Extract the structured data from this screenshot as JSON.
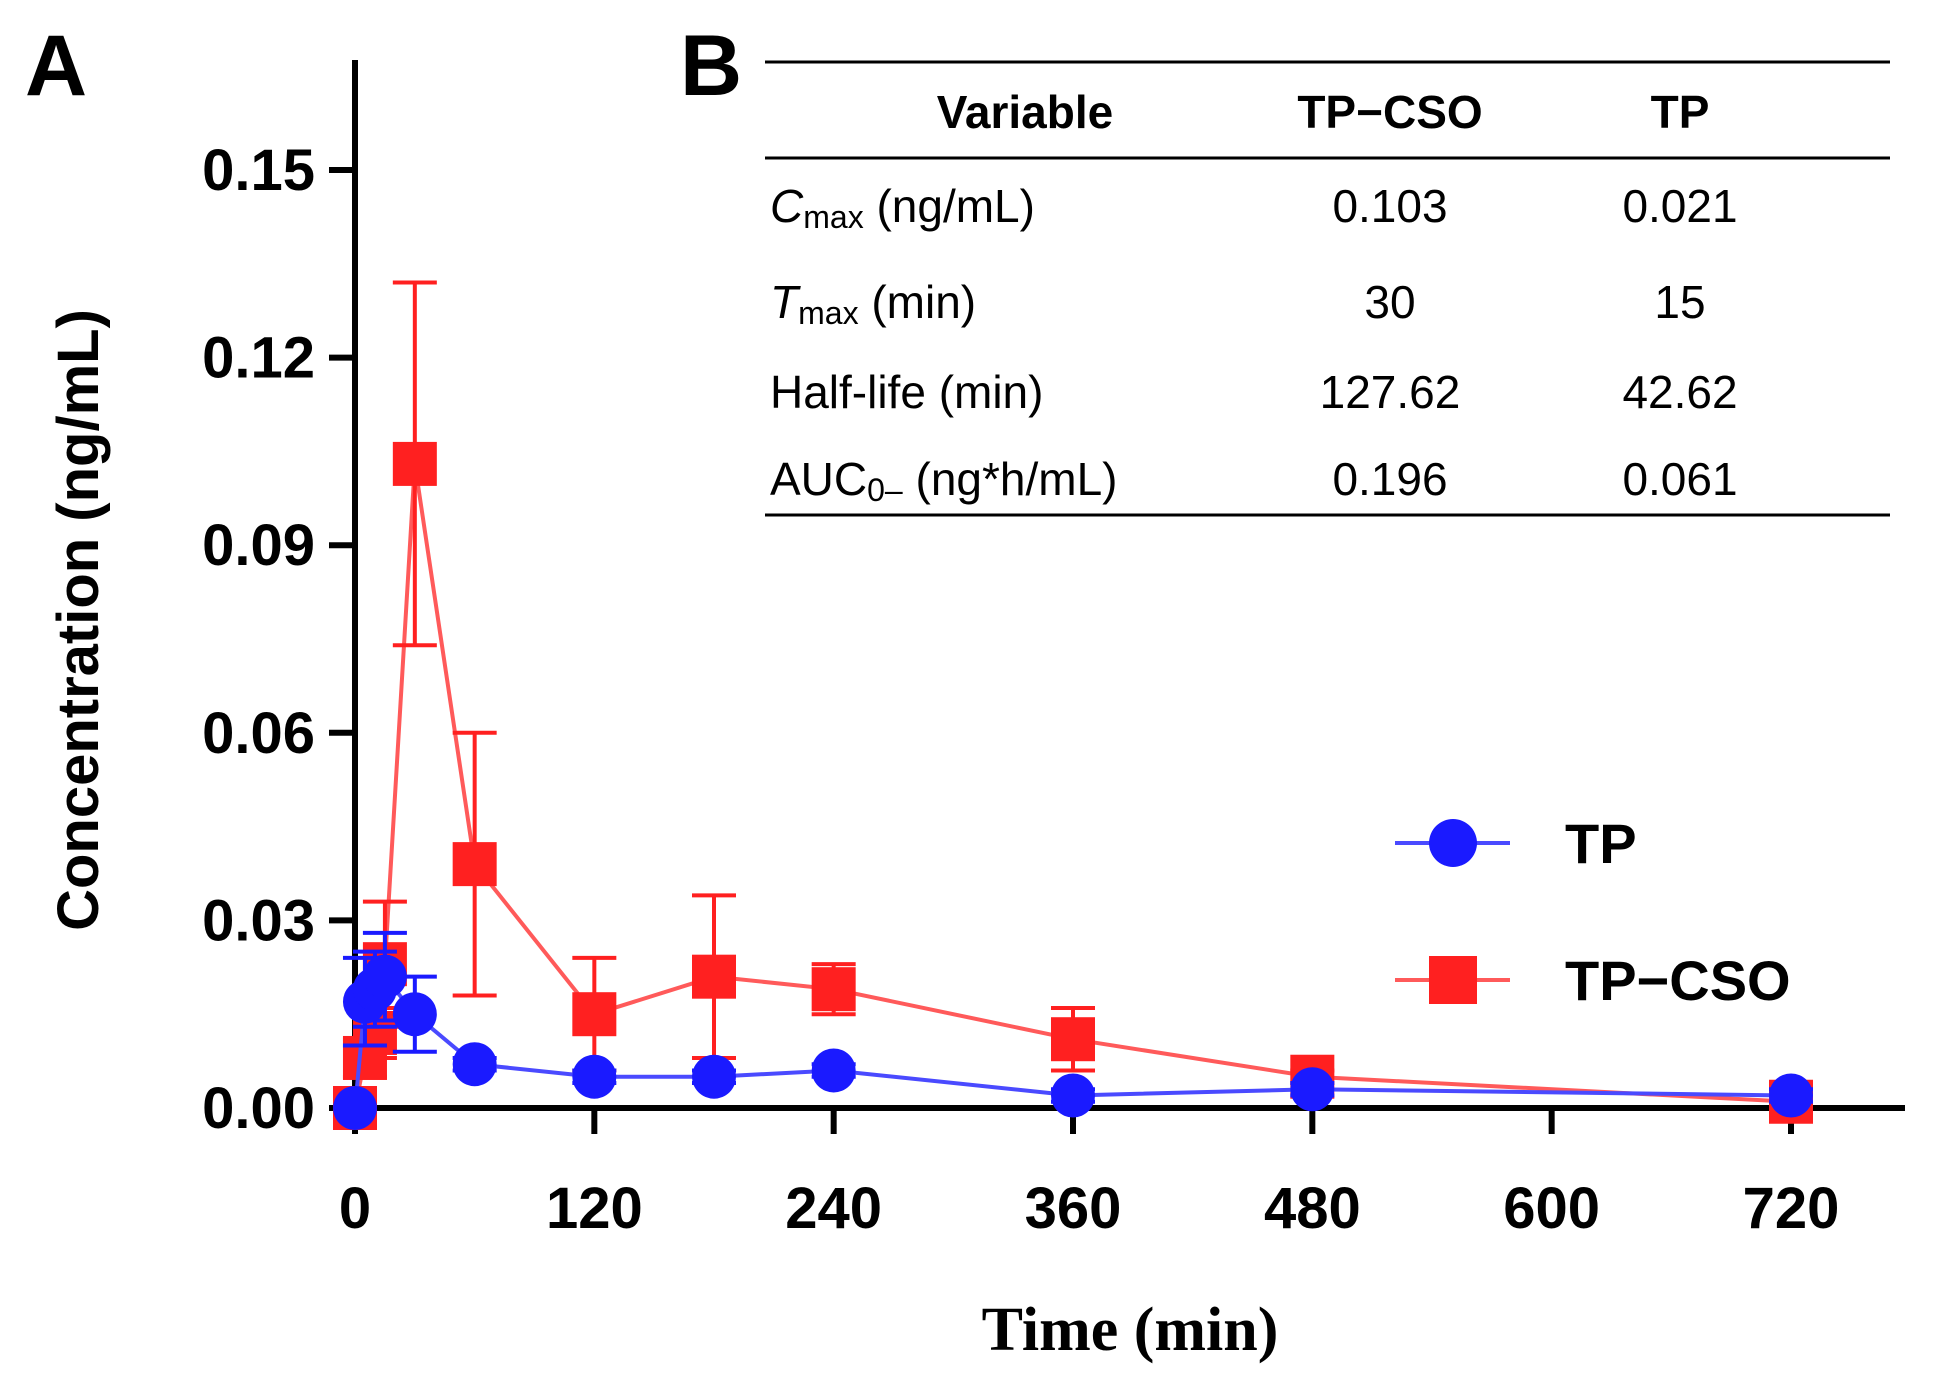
{
  "panel_a_label": "A",
  "panel_b_label": "B",
  "colors": {
    "tp": "#1a1aff",
    "tp_cso": "#ff2020",
    "tp_line": "#4a4aff",
    "tp_cso_line": "#ff5a5a",
    "axis": "#000000"
  },
  "chart_data": {
    "type": "line",
    "title": "",
    "xlabel": "Time (min)",
    "ylabel": "Concentration (ng/mL)",
    "xlim": [
      0,
      760
    ],
    "ylim": [
      0,
      0.165
    ],
    "xticks": [
      0,
      120,
      240,
      360,
      480,
      600,
      720
    ],
    "yticks": [
      0.0,
      0.03,
      0.06,
      0.09,
      0.12,
      0.15
    ],
    "xtick_labels": [
      "0",
      "120",
      "240",
      "360",
      "480",
      "600",
      "720"
    ],
    "ytick_labels": [
      "0.00",
      "0.03",
      "0.06",
      "0.09",
      "0.12",
      "0.15"
    ],
    "legend_position": "right",
    "series": [
      {
        "name": "TP",
        "marker": "circle",
        "x": [
          0,
          5,
          10,
          15,
          30,
          60,
          120,
          180,
          240,
          360,
          480,
          720
        ],
        "y": [
          0.0,
          0.017,
          0.019,
          0.021,
          0.015,
          0.007,
          0.005,
          0.005,
          0.006,
          0.002,
          0.003,
          0.002
        ],
        "err": [
          0.0,
          0.007,
          0.006,
          0.007,
          0.006,
          0.001,
          0.001,
          0.001,
          0.001,
          0.001,
          0.001,
          0.001
        ]
      },
      {
        "name": "TP−CSO",
        "marker": "square",
        "x": [
          0,
          5,
          10,
          15,
          30,
          60,
          120,
          180,
          240,
          360,
          480,
          720
        ],
        "y": [
          0.0,
          0.008,
          0.012,
          0.023,
          0.103,
          0.039,
          0.015,
          0.021,
          0.019,
          0.011,
          0.005,
          0.001
        ],
        "err": [
          0.0,
          0.003,
          0.004,
          0.01,
          0.029,
          0.021,
          0.009,
          0.013,
          0.004,
          0.005,
          0.001,
          0.001
        ]
      }
    ]
  },
  "table": {
    "headers": [
      "Variable",
      "TP−CSO",
      "TP"
    ],
    "rows": [
      {
        "var_main": "C",
        "var_sub": "max",
        "var_rest": " (ng/mL)",
        "italic": true,
        "tp_cso": "0.103",
        "tp": "0.021"
      },
      {
        "var_main": "T",
        "var_sub": "max",
        "var_rest": " (min)",
        "italic": true,
        "tp_cso": "30",
        "tp": "15"
      },
      {
        "var_main": "Half-life (min)",
        "var_sub": "",
        "var_rest": "",
        "italic": false,
        "tp_cso": "127.62",
        "tp": "42.62"
      },
      {
        "var_main": "AUC",
        "var_sub": "0–",
        "var_rest": " (ng*h/mL)",
        "italic": false,
        "tp_cso": "0.196",
        "tp": "0.061"
      }
    ]
  }
}
